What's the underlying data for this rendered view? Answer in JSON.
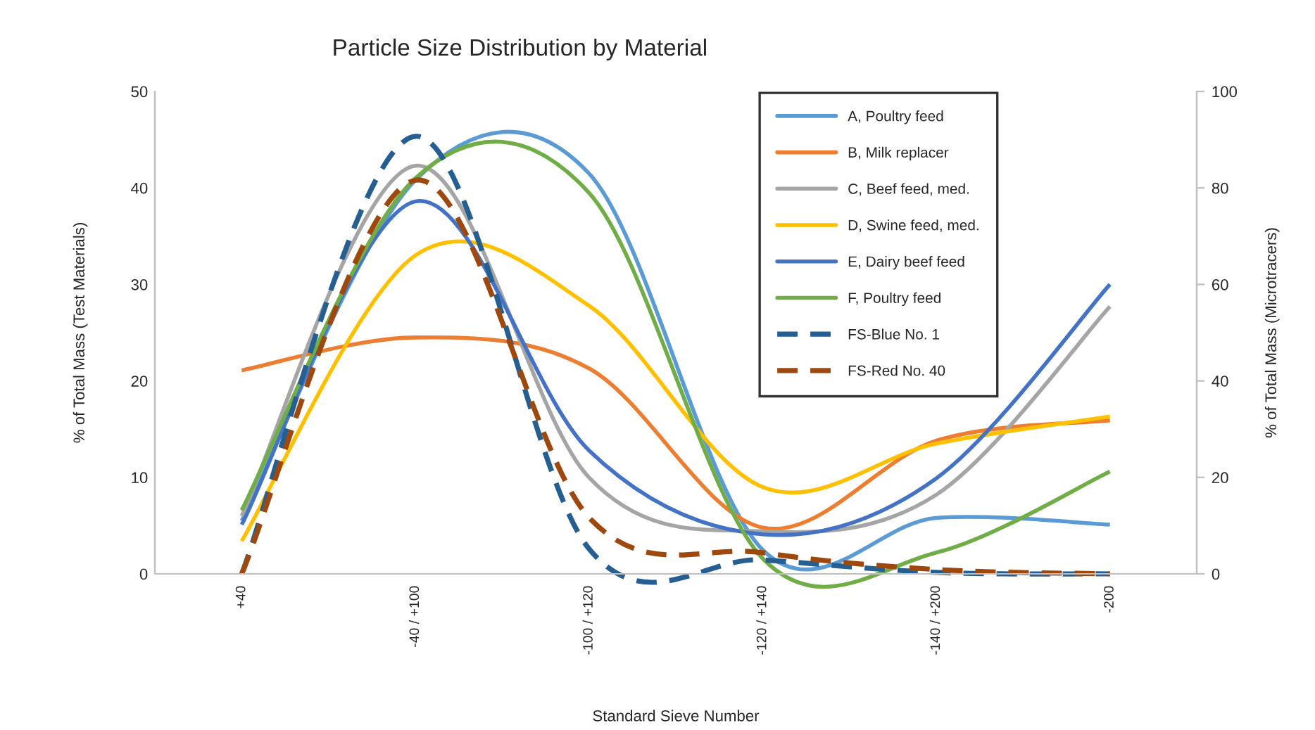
{
  "chart_data": {
    "type": "line",
    "title": "Particle Size Distribution by Material",
    "xlabel": "Standard Sieve Number",
    "ylabel": "% of Total Mass (Test Materials)",
    "y2label": "% of Total Mass (Microtracers)",
    "categories": [
      "+40",
      "-40 / +100",
      "-100 / +120",
      "-120 / +140",
      "-140 / +200",
      "-200"
    ],
    "ylim": [
      0,
      50
    ],
    "yticks": [
      0,
      10,
      20,
      30,
      40,
      50
    ],
    "y2lim": [
      0,
      100
    ],
    "y2ticks": [
      0,
      20,
      40,
      60,
      80,
      100
    ],
    "grid": false,
    "legend": "top right",
    "marker": "none",
    "series": [
      {
        "name": "A, Poultry feed",
        "color": "#5b9bd5",
        "line_style": "solid",
        "values": [
          5.5,
          40.8,
          41.5,
          2.5,
          5.8,
          5.1
        ]
      },
      {
        "name": "B, Milk replacer",
        "color": "#ed7d31",
        "line_style": "solid",
        "values": [
          21.1,
          24.5,
          21.3,
          4.8,
          13.8,
          15.9
        ]
      },
      {
        "name": "C, Beef feed, med.",
        "color": "#a5a5a5",
        "line_style": "solid",
        "values": [
          6,
          42.3,
          10,
          4.4,
          8.2,
          27.7
        ]
      },
      {
        "name": "D, Swine feed, med.",
        "color": "#ffc000",
        "line_style": "solid",
        "values": [
          3.4,
          33,
          27.8,
          9,
          13.5,
          16.3
        ]
      },
      {
        "name": "E, Dairy beef feed",
        "color": "#4472c4",
        "line_style": "solid",
        "values": [
          5.1,
          38.6,
          12.8,
          4.1,
          9.9,
          30
        ]
      },
      {
        "name": "F, Poultry feed",
        "color": "#70ad47",
        "line_style": "solid",
        "values": [
          6.6,
          41,
          39.5,
          1.6,
          2.2,
          10.6
        ]
      },
      {
        "name": "FS-Blue No. 1",
        "color": "#255e91",
        "line_style": "dashed",
        "axis": "y2",
        "values": [
          0,
          90.7,
          5.2,
          2.9,
          0.3,
          0
        ]
      },
      {
        "name": "FS-Red No. 40",
        "color": "#9e480e",
        "line_style": "dashed",
        "axis": "y2",
        "values": [
          0,
          81.6,
          11.7,
          4.4,
          0.9,
          0
        ]
      }
    ]
  }
}
